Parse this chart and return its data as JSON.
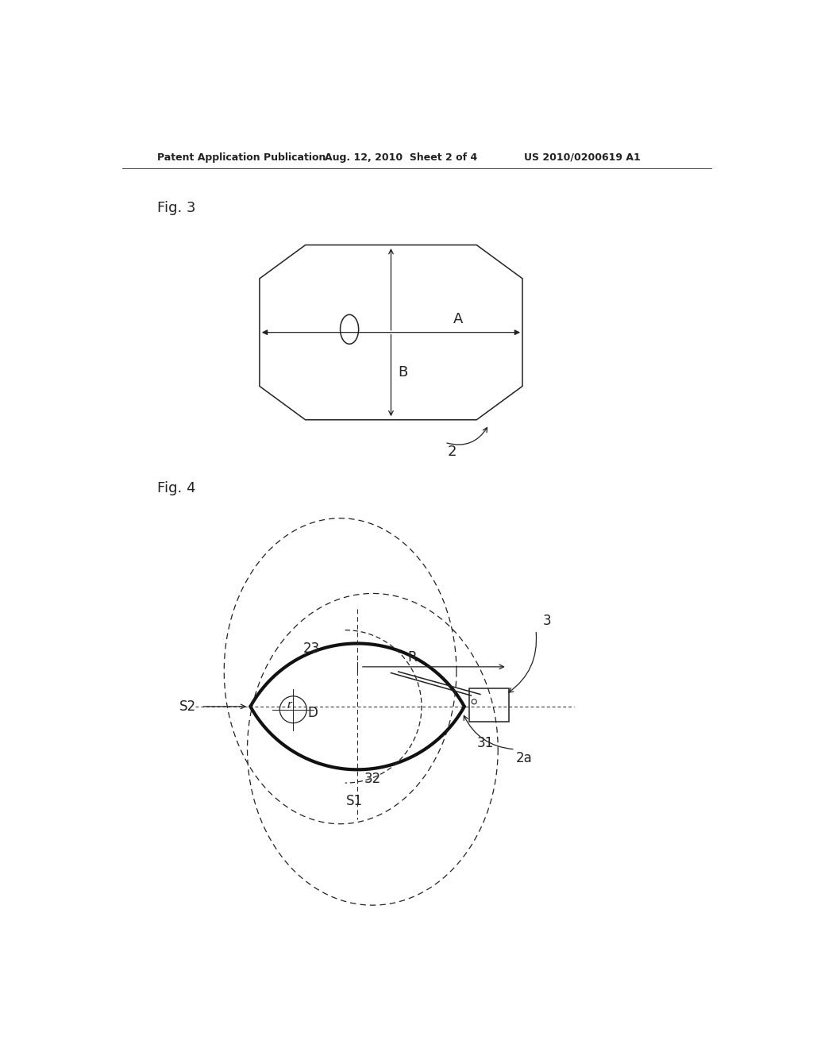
{
  "bg_color": "#ffffff",
  "header_left": "Patent Application Publication",
  "header_mid": "Aug. 12, 2010  Sheet 2 of 4",
  "header_right": "US 2010/0200619 A1",
  "fig3_label": "Fig. 3",
  "fig4_label": "Fig. 4",
  "label_A": "A",
  "label_B": "B",
  "label_2": "2",
  "label_2a": "2a",
  "label_3": "3",
  "label_23": "23",
  "label_R": "R",
  "label_D": "D",
  "label_r": "r",
  "label_S1": "S1",
  "label_S2": "S2",
  "label_31": "31",
  "label_32": "32",
  "lc": "#222222",
  "lw_thin": 0.9,
  "lw_med": 1.1,
  "lw_thick": 3.0,
  "fs_hdr": 9,
  "fs_fig": 13,
  "fs_ann": 12
}
